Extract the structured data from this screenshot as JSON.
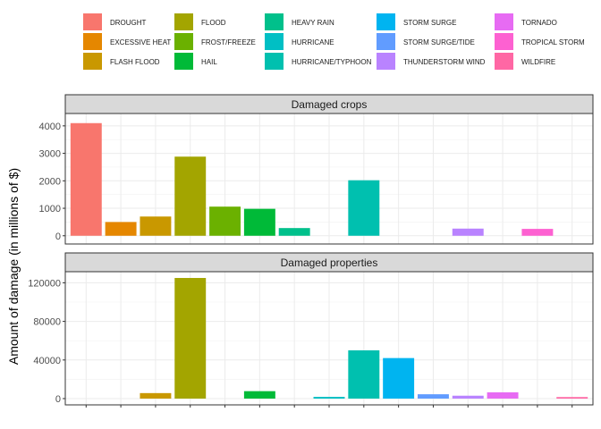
{
  "chart_data": {
    "type": "bar",
    "ylabel": "Amount of damage (in millions of $)",
    "xlabel": "",
    "legend_position": "top",
    "grid": true,
    "categories": [
      "DROUGHT",
      "EXCESSIVE HEAT",
      "FLASH FLOOD",
      "FLOOD",
      "FROST/FREEZE",
      "HAIL",
      "HEAVY RAIN",
      "HURRICANE",
      "HURRICANE/TYPHOON",
      "STORM SURGE",
      "STORM SURGE/TIDE",
      "THUNDERSTORM WIND",
      "TORNADO",
      "TROPICAL STORM",
      "WILDFIRE"
    ],
    "colors": [
      "#F8766D",
      "#E58700",
      "#C99800",
      "#A3A500",
      "#6BB100",
      "#00BA38",
      "#00C08B",
      "#00BFC4",
      "#00C0AF",
      "#00B4F0",
      "#619CFF",
      "#B983FF",
      "#E76BF3",
      "#FD61D1",
      "#FF67A4"
    ],
    "panels": [
      {
        "title": "Damaged crops",
        "ylim": [
          -300,
          4450
        ],
        "yticks": [
          0,
          1000,
          2000,
          3000,
          4000
        ],
        "ytick_labels": [
          "0",
          "1000",
          "2000",
          "3000",
          "4000"
        ],
        "values": [
          4100,
          500,
          700,
          2880,
          1060,
          980,
          280,
          0,
          2020,
          0,
          0,
          260,
          0,
          250,
          0
        ]
      },
      {
        "title": "Damaged properties",
        "ylim": [
          -6500,
          131500
        ],
        "yticks": [
          0,
          40000,
          80000,
          120000
        ],
        "ytick_labels": [
          "0",
          "40000",
          "80000",
          "120000"
        ],
        "values": [
          0,
          0,
          5700,
          125000,
          0,
          7700,
          0,
          1800,
          50000,
          42000,
          4500,
          3000,
          6500,
          0,
          1600
        ]
      }
    ]
  },
  "legend": {
    "entries": [
      {
        "label": "DROUGHT",
        "color": "#F8766D"
      },
      {
        "label": "EXCESSIVE HEAT",
        "color": "#E58700"
      },
      {
        "label": "FLASH FLOOD",
        "color": "#C99800"
      },
      {
        "label": "FLOOD",
        "color": "#A3A500"
      },
      {
        "label": "FROST/FREEZE",
        "color": "#6BB100"
      },
      {
        "label": "HAIL",
        "color": "#00BA38"
      },
      {
        "label": "HEAVY RAIN",
        "color": "#00C08B"
      },
      {
        "label": "HURRICANE",
        "color": "#00BFC4"
      },
      {
        "label": "HURRICANE/TYPHOON",
        "color": "#00C0AF"
      },
      {
        "label": "STORM SURGE",
        "color": "#00B4F0"
      },
      {
        "label": "STORM SURGE/TIDE",
        "color": "#619CFF"
      },
      {
        "label": "THUNDERSTORM WIND",
        "color": "#B983FF"
      },
      {
        "label": "TORNADO",
        "color": "#E76BF3"
      },
      {
        "label": "TROPICAL STORM",
        "color": "#FD61D1"
      },
      {
        "label": "WILDFIRE",
        "color": "#FF67A4"
      }
    ]
  }
}
